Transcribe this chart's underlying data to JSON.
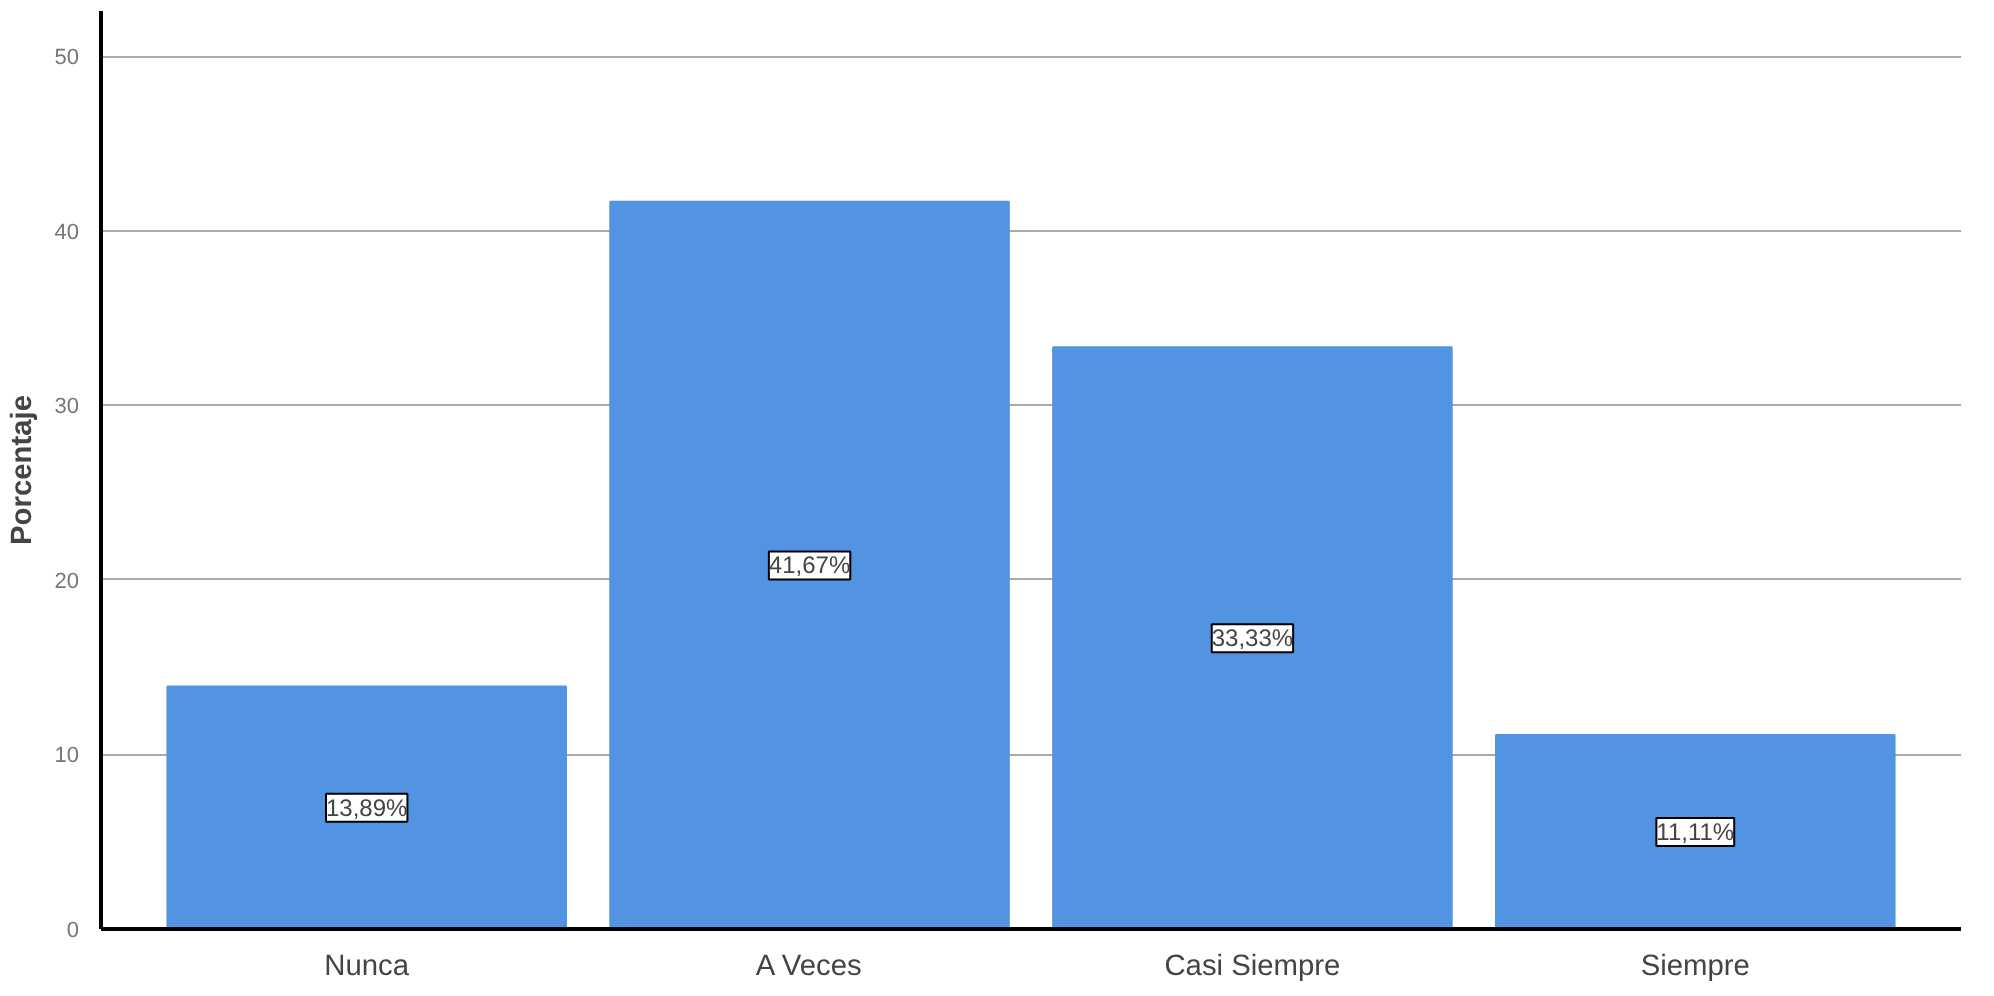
{
  "chart_data": {
    "type": "bar",
    "ylabel": "Porcentaje",
    "categories": [
      "Nunca",
      "A Veces",
      "Casi Siempre",
      "Siempre"
    ],
    "values": [
      13.89,
      41.67,
      33.33,
      11.11
    ],
    "value_labels": [
      "13,89%",
      "41,67%",
      "33,33%",
      "11,11%"
    ],
    "color": "#5294e2",
    "ylim": [
      0,
      52.6
    ],
    "yticks": [
      0,
      10,
      20,
      30,
      40,
      50
    ],
    "grid": "y"
  }
}
